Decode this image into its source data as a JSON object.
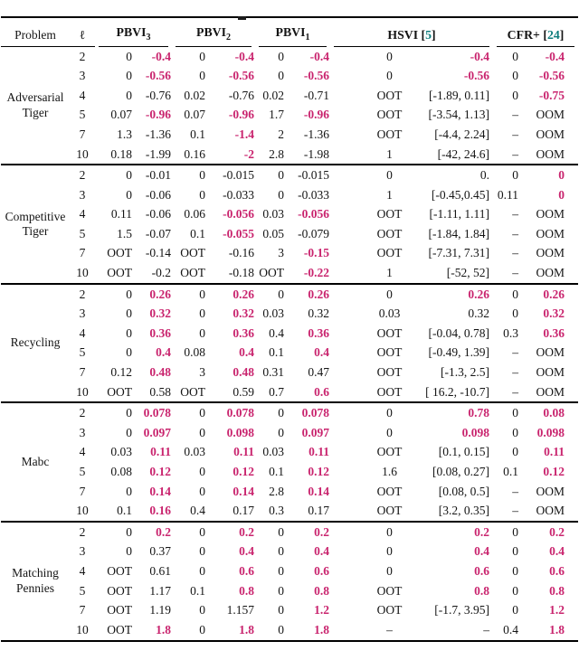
{
  "colors": {
    "highlight": "#c9246e",
    "citation": "#0e7d7d",
    "text": "#141414"
  },
  "table": {
    "header": {
      "problem": "Problem",
      "ell": "ℓ",
      "groups": [
        {
          "name": "pbvi3",
          "label": "PBVI",
          "sub": "3"
        },
        {
          "name": "pbvi2",
          "label": "PBVI",
          "sub": "2"
        },
        {
          "name": "pbvi1",
          "label": "PBVI",
          "sub": "1"
        },
        {
          "name": "hsvi",
          "label": "HSVI",
          "cite_open": "[",
          "cite": "5",
          "cite_close": "]"
        },
        {
          "name": "cfr",
          "label": "CFR+",
          "cite_open": "[",
          "cite": "24",
          "cite_close": "]"
        }
      ]
    },
    "sections": [
      {
        "id": "adversarial-tiger",
        "label_lines": [
          "Adversarial",
          "Tiger"
        ],
        "rows": [
          {
            "l": "2",
            "vals": [
              "0",
              "-0.4",
              "0",
              "-0.4",
              "0",
              "-0.4",
              "0",
              "-0.4",
              "0",
              "-0.4"
            ],
            "hl": [
              1,
              3,
              5,
              7,
              9
            ]
          },
          {
            "l": "3",
            "vals": [
              "0",
              "-0.56",
              "0",
              "-0.56",
              "0",
              "-0.56",
              "0",
              "-0.56",
              "0",
              "-0.56"
            ],
            "hl": [
              1,
              3,
              5,
              7,
              9
            ]
          },
          {
            "l": "4",
            "vals": [
              "0",
              "-0.76",
              "0.02",
              "-0.76",
              "0.02",
              "-0.71",
              "OOT",
              "[-1.89, 0.11]",
              "0",
              "-0.75"
            ],
            "hl": [
              9
            ]
          },
          {
            "l": "5",
            "vals": [
              "0.07",
              "-0.96",
              "0.07",
              "-0.96",
              "1.7",
              "-0.96",
              "OOT",
              "[-3.54, 1.13]",
              "–",
              "OOM"
            ],
            "hl": [
              1,
              3,
              5
            ]
          },
          {
            "l": "7",
            "vals": [
              "1.3",
              "-1.36",
              "0.1",
              "-1.4",
              "2",
              "-1.36",
              "OOT",
              "[-4.4, 2.24]",
              "–",
              "OOM"
            ],
            "hl": [
              3
            ]
          },
          {
            "l": "10",
            "vals": [
              "0.18",
              "-1.99",
              "0.16",
              "-2",
              "2.8",
              "-1.98",
              "1",
              "[-42, 24.6]",
              "–",
              "OOM"
            ],
            "hl": [
              3
            ]
          }
        ]
      },
      {
        "id": "competitive-tiger",
        "label_lines": [
          "Competitive",
          "Tiger"
        ],
        "rows": [
          {
            "l": "2",
            "vals": [
              "0",
              "-0.01",
              "0",
              "-0.015",
              "0",
              "-0.015",
              "0",
              "0.",
              "0",
              "0"
            ],
            "hl": [
              9
            ]
          },
          {
            "l": "3",
            "vals": [
              "0",
              "-0.06",
              "0",
              "-0.033",
              "0",
              "-0.033",
              "1",
              "[-0.45,0.45]",
              "0.11",
              "0"
            ],
            "hl": [
              9
            ]
          },
          {
            "l": "4",
            "vals": [
              "0.11",
              "-0.06",
              "0.06",
              "-0.056",
              "0.03",
              "-0.056",
              "OOT",
              "[-1.11, 1.11]",
              "–",
              "OOM"
            ],
            "hl": [
              3,
              5
            ]
          },
          {
            "l": "5",
            "vals": [
              "1.5",
              "-0.07",
              "0.1",
              "-0.055",
              "0.05",
              "-0.079",
              "OOT",
              "[-1.84, 1.84]",
              "–",
              "OOM"
            ],
            "hl": [
              3
            ]
          },
          {
            "l": "7",
            "vals": [
              "OOT",
              "-0.14",
              "OOT",
              "-0.16",
              "3",
              "-0.15",
              "OOT",
              "[-7.31, 7.31]",
              "–",
              "OOM"
            ],
            "hl": [
              5
            ]
          },
          {
            "l": "10",
            "vals": [
              "OOT",
              "-0.2",
              "OOT",
              "-0.18",
              "OOT",
              "-0.22",
              "1",
              "[-52, 52]",
              "–",
              "OOM"
            ],
            "hl": [
              5
            ]
          }
        ]
      },
      {
        "id": "recycling",
        "label_lines": [
          "Recycling"
        ],
        "rows": [
          {
            "l": "2",
            "vals": [
              "0",
              "0.26",
              "0",
              "0.26",
              "0",
              "0.26",
              "0",
              "0.26",
              "0",
              "0.26"
            ],
            "hl": [
              1,
              3,
              5,
              7,
              9
            ]
          },
          {
            "l": "3",
            "vals": [
              "0",
              "0.32",
              "0",
              "0.32",
              "0.03",
              "0.32",
              "0.03",
              "0.32",
              "0",
              "0.32"
            ],
            "hl": [
              1,
              3,
              9
            ]
          },
          {
            "l": "4",
            "vals": [
              "0",
              "0.36",
              "0",
              "0.36",
              "0.4",
              "0.36",
              "OOT",
              "[-0.04, 0.78]",
              "0.3",
              "0.36"
            ],
            "hl": [
              1,
              3,
              5,
              9
            ]
          },
          {
            "l": "5",
            "vals": [
              "0",
              "0.4",
              "0.08",
              "0.4",
              "0.1",
              "0.4",
              "OOT",
              "[-0.49, 1.39]",
              "–",
              "OOM"
            ],
            "hl": [
              1,
              3,
              5
            ]
          },
          {
            "l": "7",
            "vals": [
              "0.12",
              "0.48",
              "3",
              "0.48",
              "0.31",
              "0.47",
              "OOT",
              "[-1.3, 2.5]",
              "–",
              "OOM"
            ],
            "hl": [
              1,
              3
            ]
          },
          {
            "l": "10",
            "vals": [
              "OOT",
              "0.58",
              "OOT",
              "0.59",
              "0.7",
              "0.6",
              "OOT",
              "[ 16.2, -10.7]",
              "–",
              "OOM"
            ],
            "hl": [
              5
            ]
          }
        ]
      },
      {
        "id": "mabc",
        "label_lines": [
          "Mabc"
        ],
        "rows": [
          {
            "l": "2",
            "vals": [
              "0",
              "0.078",
              "0",
              "0.078",
              "0",
              "0.078",
              "0",
              "0.78",
              "0",
              "0.08"
            ],
            "hl": [
              1,
              3,
              5,
              7,
              9
            ]
          },
          {
            "l": "3",
            "vals": [
              "0",
              "0.097",
              "0",
              "0.098",
              "0",
              "0.097",
              "0",
              "0.098",
              "0",
              "0.098"
            ],
            "hl": [
              1,
              3,
              5,
              7,
              9
            ]
          },
          {
            "l": "4",
            "vals": [
              "0.03",
              "0.11",
              "0.03",
              "0.11",
              "0.03",
              "0.11",
              "OOT",
              "[0.1, 0.15]",
              "0",
              "0.11"
            ],
            "hl": [
              1,
              3,
              5,
              9
            ]
          },
          {
            "l": "5",
            "vals": [
              "0.08",
              "0.12",
              "0",
              "0.12",
              "0.1",
              "0.12",
              "1.6",
              "[0.08, 0.27]",
              "0.1",
              "0.12"
            ],
            "hl": [
              1,
              3,
              5,
              9
            ]
          },
          {
            "l": "7",
            "vals": [
              "0",
              "0.14",
              "0",
              "0.14",
              "2.8",
              "0.14",
              "OOT",
              "[0.08, 0.5]",
              "–",
              "OOM"
            ],
            "hl": [
              1,
              3,
              5
            ]
          },
          {
            "l": "10",
            "vals": [
              "0.1",
              "0.16",
              "0.4",
              "0.17",
              "0.3",
              "0.17",
              "OOT",
              "[3.2, 0.35]",
              "–",
              "OOM"
            ],
            "hl": [
              1
            ]
          }
        ]
      },
      {
        "id": "matching-pennies",
        "label_lines": [
          "Matching",
          "Pennies"
        ],
        "rows": [
          {
            "l": "2",
            "vals": [
              "0",
              "0.2",
              "0",
              "0.2",
              "0",
              "0.2",
              "0",
              "0.2",
              "0",
              "0.2"
            ],
            "hl": [
              1,
              3,
              5,
              7,
              9
            ]
          },
          {
            "l": "3",
            "vals": [
              "0",
              "0.37",
              "0",
              "0.4",
              "0",
              "0.4",
              "0",
              "0.4",
              "0",
              "0.4"
            ],
            "hl": [
              3,
              5,
              7,
              9
            ]
          },
          {
            "l": "4",
            "vals": [
              "OOT",
              "0.61",
              "0",
              "0.6",
              "0",
              "0.6",
              "0",
              "0.6",
              "0",
              "0.6"
            ],
            "hl": [
              3,
              5,
              7,
              9
            ]
          },
          {
            "l": "5",
            "vals": [
              "OOT",
              "1.17",
              "0.1",
              "0.8",
              "0",
              "0.8",
              "OOT",
              "0.8",
              "0",
              "0.8"
            ],
            "hl": [
              3,
              5,
              7,
              9
            ]
          },
          {
            "l": "7",
            "vals": [
              "OOT",
              "1.19",
              "0",
              "1.157",
              "0",
              "1.2",
              "OOT",
              "[-1.7, 3.95]",
              "0",
              "1.2"
            ],
            "hl": [
              5,
              9
            ]
          },
          {
            "l": "10",
            "vals": [
              "OOT",
              "1.8",
              "0",
              "1.8",
              "0",
              "1.8",
              "–",
              "–",
              "0.4",
              "1.8"
            ],
            "hl": [
              1,
              3,
              5,
              9
            ]
          }
        ]
      }
    ]
  }
}
